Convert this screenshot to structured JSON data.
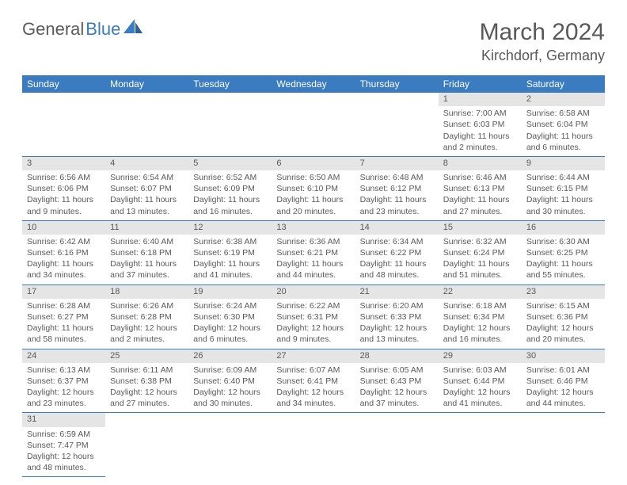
{
  "logo": {
    "word1": "General",
    "word2": "Blue"
  },
  "title": "March 2024",
  "location": "Kirchdorf, Germany",
  "colors": {
    "header_bg": "#3b7bbf",
    "header_text": "#ffffff",
    "daynum_bg": "#e5e5e5",
    "text": "#595959",
    "border": "#3b7bbf",
    "page_bg": "#ffffff"
  },
  "weekdays": [
    "Sunday",
    "Monday",
    "Tuesday",
    "Wednesday",
    "Thursday",
    "Friday",
    "Saturday"
  ],
  "weeks": [
    [
      null,
      null,
      null,
      null,
      null,
      {
        "n": "1",
        "sr": "Sunrise: 7:00 AM",
        "ss": "Sunset: 6:03 PM",
        "dl": "Daylight: 11 hours and 2 minutes."
      },
      {
        "n": "2",
        "sr": "Sunrise: 6:58 AM",
        "ss": "Sunset: 6:04 PM",
        "dl": "Daylight: 11 hours and 6 minutes."
      }
    ],
    [
      {
        "n": "3",
        "sr": "Sunrise: 6:56 AM",
        "ss": "Sunset: 6:06 PM",
        "dl": "Daylight: 11 hours and 9 minutes."
      },
      {
        "n": "4",
        "sr": "Sunrise: 6:54 AM",
        "ss": "Sunset: 6:07 PM",
        "dl": "Daylight: 11 hours and 13 minutes."
      },
      {
        "n": "5",
        "sr": "Sunrise: 6:52 AM",
        "ss": "Sunset: 6:09 PM",
        "dl": "Daylight: 11 hours and 16 minutes."
      },
      {
        "n": "6",
        "sr": "Sunrise: 6:50 AM",
        "ss": "Sunset: 6:10 PM",
        "dl": "Daylight: 11 hours and 20 minutes."
      },
      {
        "n": "7",
        "sr": "Sunrise: 6:48 AM",
        "ss": "Sunset: 6:12 PM",
        "dl": "Daylight: 11 hours and 23 minutes."
      },
      {
        "n": "8",
        "sr": "Sunrise: 6:46 AM",
        "ss": "Sunset: 6:13 PM",
        "dl": "Daylight: 11 hours and 27 minutes."
      },
      {
        "n": "9",
        "sr": "Sunrise: 6:44 AM",
        "ss": "Sunset: 6:15 PM",
        "dl": "Daylight: 11 hours and 30 minutes."
      }
    ],
    [
      {
        "n": "10",
        "sr": "Sunrise: 6:42 AM",
        "ss": "Sunset: 6:16 PM",
        "dl": "Daylight: 11 hours and 34 minutes."
      },
      {
        "n": "11",
        "sr": "Sunrise: 6:40 AM",
        "ss": "Sunset: 6:18 PM",
        "dl": "Daylight: 11 hours and 37 minutes."
      },
      {
        "n": "12",
        "sr": "Sunrise: 6:38 AM",
        "ss": "Sunset: 6:19 PM",
        "dl": "Daylight: 11 hours and 41 minutes."
      },
      {
        "n": "13",
        "sr": "Sunrise: 6:36 AM",
        "ss": "Sunset: 6:21 PM",
        "dl": "Daylight: 11 hours and 44 minutes."
      },
      {
        "n": "14",
        "sr": "Sunrise: 6:34 AM",
        "ss": "Sunset: 6:22 PM",
        "dl": "Daylight: 11 hours and 48 minutes."
      },
      {
        "n": "15",
        "sr": "Sunrise: 6:32 AM",
        "ss": "Sunset: 6:24 PM",
        "dl": "Daylight: 11 hours and 51 minutes."
      },
      {
        "n": "16",
        "sr": "Sunrise: 6:30 AM",
        "ss": "Sunset: 6:25 PM",
        "dl": "Daylight: 11 hours and 55 minutes."
      }
    ],
    [
      {
        "n": "17",
        "sr": "Sunrise: 6:28 AM",
        "ss": "Sunset: 6:27 PM",
        "dl": "Daylight: 11 hours and 58 minutes."
      },
      {
        "n": "18",
        "sr": "Sunrise: 6:26 AM",
        "ss": "Sunset: 6:28 PM",
        "dl": "Daylight: 12 hours and 2 minutes."
      },
      {
        "n": "19",
        "sr": "Sunrise: 6:24 AM",
        "ss": "Sunset: 6:30 PM",
        "dl": "Daylight: 12 hours and 6 minutes."
      },
      {
        "n": "20",
        "sr": "Sunrise: 6:22 AM",
        "ss": "Sunset: 6:31 PM",
        "dl": "Daylight: 12 hours and 9 minutes."
      },
      {
        "n": "21",
        "sr": "Sunrise: 6:20 AM",
        "ss": "Sunset: 6:33 PM",
        "dl": "Daylight: 12 hours and 13 minutes."
      },
      {
        "n": "22",
        "sr": "Sunrise: 6:18 AM",
        "ss": "Sunset: 6:34 PM",
        "dl": "Daylight: 12 hours and 16 minutes."
      },
      {
        "n": "23",
        "sr": "Sunrise: 6:15 AM",
        "ss": "Sunset: 6:36 PM",
        "dl": "Daylight: 12 hours and 20 minutes."
      }
    ],
    [
      {
        "n": "24",
        "sr": "Sunrise: 6:13 AM",
        "ss": "Sunset: 6:37 PM",
        "dl": "Daylight: 12 hours and 23 minutes."
      },
      {
        "n": "25",
        "sr": "Sunrise: 6:11 AM",
        "ss": "Sunset: 6:38 PM",
        "dl": "Daylight: 12 hours and 27 minutes."
      },
      {
        "n": "26",
        "sr": "Sunrise: 6:09 AM",
        "ss": "Sunset: 6:40 PM",
        "dl": "Daylight: 12 hours and 30 minutes."
      },
      {
        "n": "27",
        "sr": "Sunrise: 6:07 AM",
        "ss": "Sunset: 6:41 PM",
        "dl": "Daylight: 12 hours and 34 minutes."
      },
      {
        "n": "28",
        "sr": "Sunrise: 6:05 AM",
        "ss": "Sunset: 6:43 PM",
        "dl": "Daylight: 12 hours and 37 minutes."
      },
      {
        "n": "29",
        "sr": "Sunrise: 6:03 AM",
        "ss": "Sunset: 6:44 PM",
        "dl": "Daylight: 12 hours and 41 minutes."
      },
      {
        "n": "30",
        "sr": "Sunrise: 6:01 AM",
        "ss": "Sunset: 6:46 PM",
        "dl": "Daylight: 12 hours and 44 minutes."
      }
    ],
    [
      {
        "n": "31",
        "sr": "Sunrise: 6:59 AM",
        "ss": "Sunset: 7:47 PM",
        "dl": "Daylight: 12 hours and 48 minutes."
      },
      null,
      null,
      null,
      null,
      null,
      null
    ]
  ]
}
